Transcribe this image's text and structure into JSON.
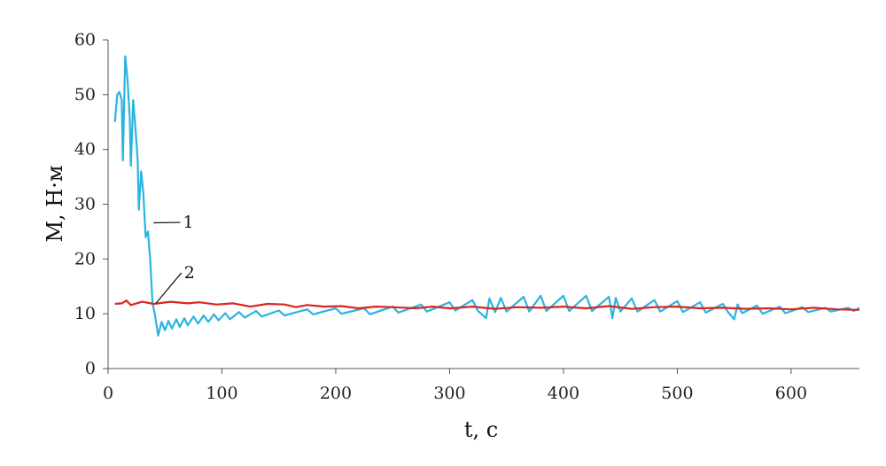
{
  "chart_data": {
    "type": "line",
    "xlabel": "t, c",
    "ylabel": "M, Н·м",
    "xlim": [
      0,
      660
    ],
    "ylim": [
      0,
      60
    ],
    "xticks": [
      0,
      100,
      200,
      300,
      400,
      500,
      600
    ],
    "yticks": [
      0,
      10,
      20,
      30,
      40,
      50,
      60
    ],
    "grid": false,
    "series": [
      {
        "name": "1",
        "color": "#2bb4e0",
        "points": [
          [
            6,
            45
          ],
          [
            8,
            50
          ],
          [
            10,
            50.5
          ],
          [
            12,
            49
          ],
          [
            13,
            38
          ],
          [
            15,
            57
          ],
          [
            17,
            53
          ],
          [
            19,
            46
          ],
          [
            20,
            37
          ],
          [
            22,
            49
          ],
          [
            24,
            44
          ],
          [
            26,
            38
          ],
          [
            27,
            29
          ],
          [
            29,
            36
          ],
          [
            31,
            32
          ],
          [
            33,
            24
          ],
          [
            35,
            25
          ],
          [
            37,
            20
          ],
          [
            39,
            12
          ],
          [
            41,
            10
          ],
          [
            44,
            6
          ],
          [
            47,
            8.5
          ],
          [
            50,
            7
          ],
          [
            53,
            8.7
          ],
          [
            56,
            7.3
          ],
          [
            60,
            9
          ],
          [
            63,
            7.6
          ],
          [
            67,
            9.2
          ],
          [
            70,
            7.9
          ],
          [
            75,
            9.5
          ],
          [
            79,
            8.2
          ],
          [
            84,
            9.7
          ],
          [
            88,
            8.5
          ],
          [
            93,
            9.9
          ],
          [
            97,
            8.8
          ],
          [
            103,
            10.1
          ],
          [
            107,
            9
          ],
          [
            115,
            10.3
          ],
          [
            120,
            9.3
          ],
          [
            130,
            10.5
          ],
          [
            135,
            9.5
          ],
          [
            150,
            10.6
          ],
          [
            155,
            9.7
          ],
          [
            175,
            10.8
          ],
          [
            180,
            9.9
          ],
          [
            200,
            11
          ],
          [
            205,
            10
          ],
          [
            225,
            11
          ],
          [
            230,
            9.9
          ],
          [
            250,
            11.3
          ],
          [
            255,
            10.2
          ],
          [
            275,
            11.7
          ],
          [
            280,
            10.4
          ],
          [
            300,
            12.1
          ],
          [
            305,
            10.6
          ],
          [
            320,
            12.5
          ],
          [
            325,
            10.5
          ],
          [
            332,
            9.2
          ],
          [
            335,
            12.8
          ],
          [
            340,
            10.3
          ],
          [
            345,
            12.9
          ],
          [
            350,
            10.4
          ],
          [
            365,
            13.1
          ],
          [
            370,
            10.4
          ],
          [
            380,
            13.3
          ],
          [
            385,
            10.5
          ],
          [
            400,
            13.3
          ],
          [
            405,
            10.5
          ],
          [
            420,
            13.3
          ],
          [
            425,
            10.5
          ],
          [
            440,
            13.1
          ],
          [
            443,
            9.2
          ],
          [
            446,
            12.9
          ],
          [
            450,
            10.4
          ],
          [
            460,
            12.8
          ],
          [
            465,
            10.4
          ],
          [
            480,
            12.5
          ],
          [
            485,
            10.4
          ],
          [
            500,
            12.3
          ],
          [
            505,
            10.3
          ],
          [
            520,
            12.1
          ],
          [
            525,
            10.2
          ],
          [
            540,
            11.8
          ],
          [
            545,
            10.2
          ],
          [
            550,
            9
          ],
          [
            553,
            11.7
          ],
          [
            557,
            10.1
          ],
          [
            570,
            11.5
          ],
          [
            575,
            10
          ],
          [
            590,
            11.3
          ],
          [
            595,
            10.1
          ],
          [
            610,
            11.2
          ],
          [
            615,
            10.3
          ],
          [
            630,
            11.1
          ],
          [
            635,
            10.4
          ],
          [
            650,
            11.1
          ],
          [
            655,
            10.5
          ],
          [
            660,
            11.1
          ]
        ]
      },
      {
        "name": "2",
        "color": "#d7261e",
        "points": [
          [
            6,
            11.8
          ],
          [
            12,
            11.9
          ],
          [
            16,
            12.4
          ],
          [
            20,
            11.6
          ],
          [
            30,
            12.2
          ],
          [
            40,
            11.8
          ],
          [
            55,
            12.2
          ],
          [
            70,
            11.9
          ],
          [
            80,
            12.1
          ],
          [
            95,
            11.7
          ],
          [
            110,
            11.9
          ],
          [
            125,
            11.3
          ],
          [
            140,
            11.8
          ],
          [
            155,
            11.7
          ],
          [
            165,
            11.2
          ],
          [
            175,
            11.6
          ],
          [
            190,
            11.3
          ],
          [
            205,
            11.4
          ],
          [
            220,
            11
          ],
          [
            235,
            11.3
          ],
          [
            250,
            11.2
          ],
          [
            270,
            11
          ],
          [
            285,
            11.3
          ],
          [
            300,
            11
          ],
          [
            320,
            11.3
          ],
          [
            340,
            10.9
          ],
          [
            360,
            11.2
          ],
          [
            380,
            11.1
          ],
          [
            400,
            11.3
          ],
          [
            420,
            11
          ],
          [
            440,
            11.4
          ],
          [
            460,
            10.9
          ],
          [
            480,
            11.2
          ],
          [
            500,
            11.3
          ],
          [
            520,
            11
          ],
          [
            540,
            11.1
          ],
          [
            560,
            10.9
          ],
          [
            580,
            11
          ],
          [
            600,
            10.8
          ],
          [
            620,
            11.1
          ],
          [
            640,
            10.8
          ],
          [
            660,
            10.7
          ]
        ]
      }
    ],
    "annotations": [
      {
        "text": "1",
        "series": 0,
        "at_x": 40,
        "at_y": 26.6,
        "label_x": 65,
        "label_y": 27
      },
      {
        "text": "2",
        "series": 1,
        "at_x": 42,
        "at_y": 11.9,
        "label_x": 66,
        "label_y": 17.8
      }
    ]
  }
}
